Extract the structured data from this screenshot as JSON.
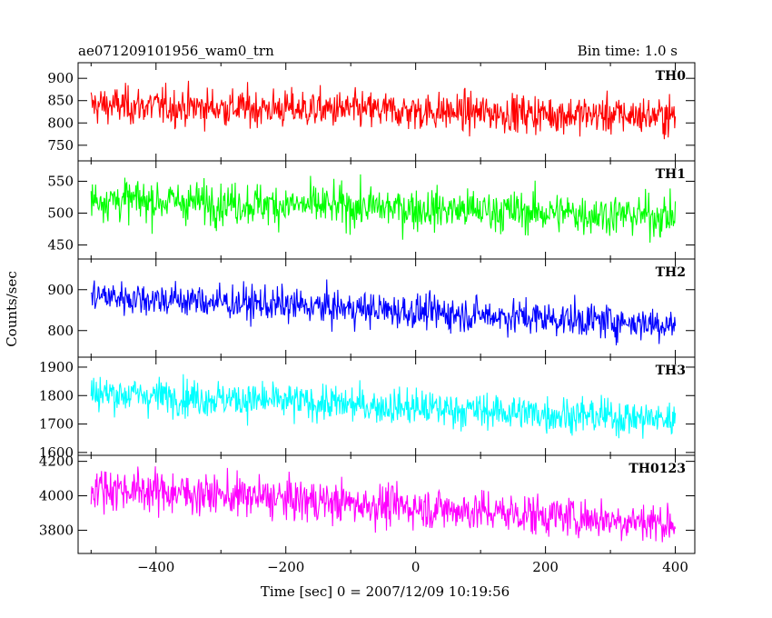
{
  "chart_data": {
    "type": "line",
    "title": "ae071209101956_wam0_trn",
    "bin_time": "Bin time: 1.0 s",
    "xlabel": "Time [sec] 0 = 2007/12/09 10:19:56",
    "ylabel": "Counts/sec",
    "xlim": [
      -520,
      430
    ],
    "x_range": [
      -500,
      400
    ],
    "x_step": 1,
    "xticks": [
      -400,
      -200,
      0,
      200,
      400
    ],
    "xtick_labels": [
      "−400",
      "−200",
      "0",
      "200",
      "400"
    ],
    "grid": false,
    "series": [
      {
        "name": "TH0",
        "color": "#ff0000",
        "ylim": [
          715,
          935
        ],
        "yticks": [
          750,
          800,
          850,
          900
        ],
        "trend_start": 840,
        "trend_end": 815,
        "noise": 30
      },
      {
        "name": "TH1",
        "color": "#00ff00",
        "ylim": [
          428,
          582
        ],
        "yticks": [
          450,
          500,
          550
        ],
        "trend_start": 522,
        "trend_end": 495,
        "noise": 23
      },
      {
        "name": "TH2",
        "color": "#0000ff",
        "ylim": [
          735,
          975
        ],
        "yticks": [
          800,
          900
        ],
        "trend_start": 885,
        "trend_end": 815,
        "noise": 30
      },
      {
        "name": "TH3",
        "color": "#00ffff",
        "ylim": [
          1590,
          1935
        ],
        "yticks": [
          1600,
          1700,
          1800,
          1900
        ],
        "trend_start": 1810,
        "trend_end": 1715,
        "noise": 45
      },
      {
        "name": "TH0123",
        "color": "#ff00ff",
        "ylim": [
          3665,
          4235
        ],
        "yticks": [
          3800,
          4000,
          4200
        ],
        "trend_start": 4050,
        "trend_end": 3840,
        "noise": 85
      }
    ]
  }
}
